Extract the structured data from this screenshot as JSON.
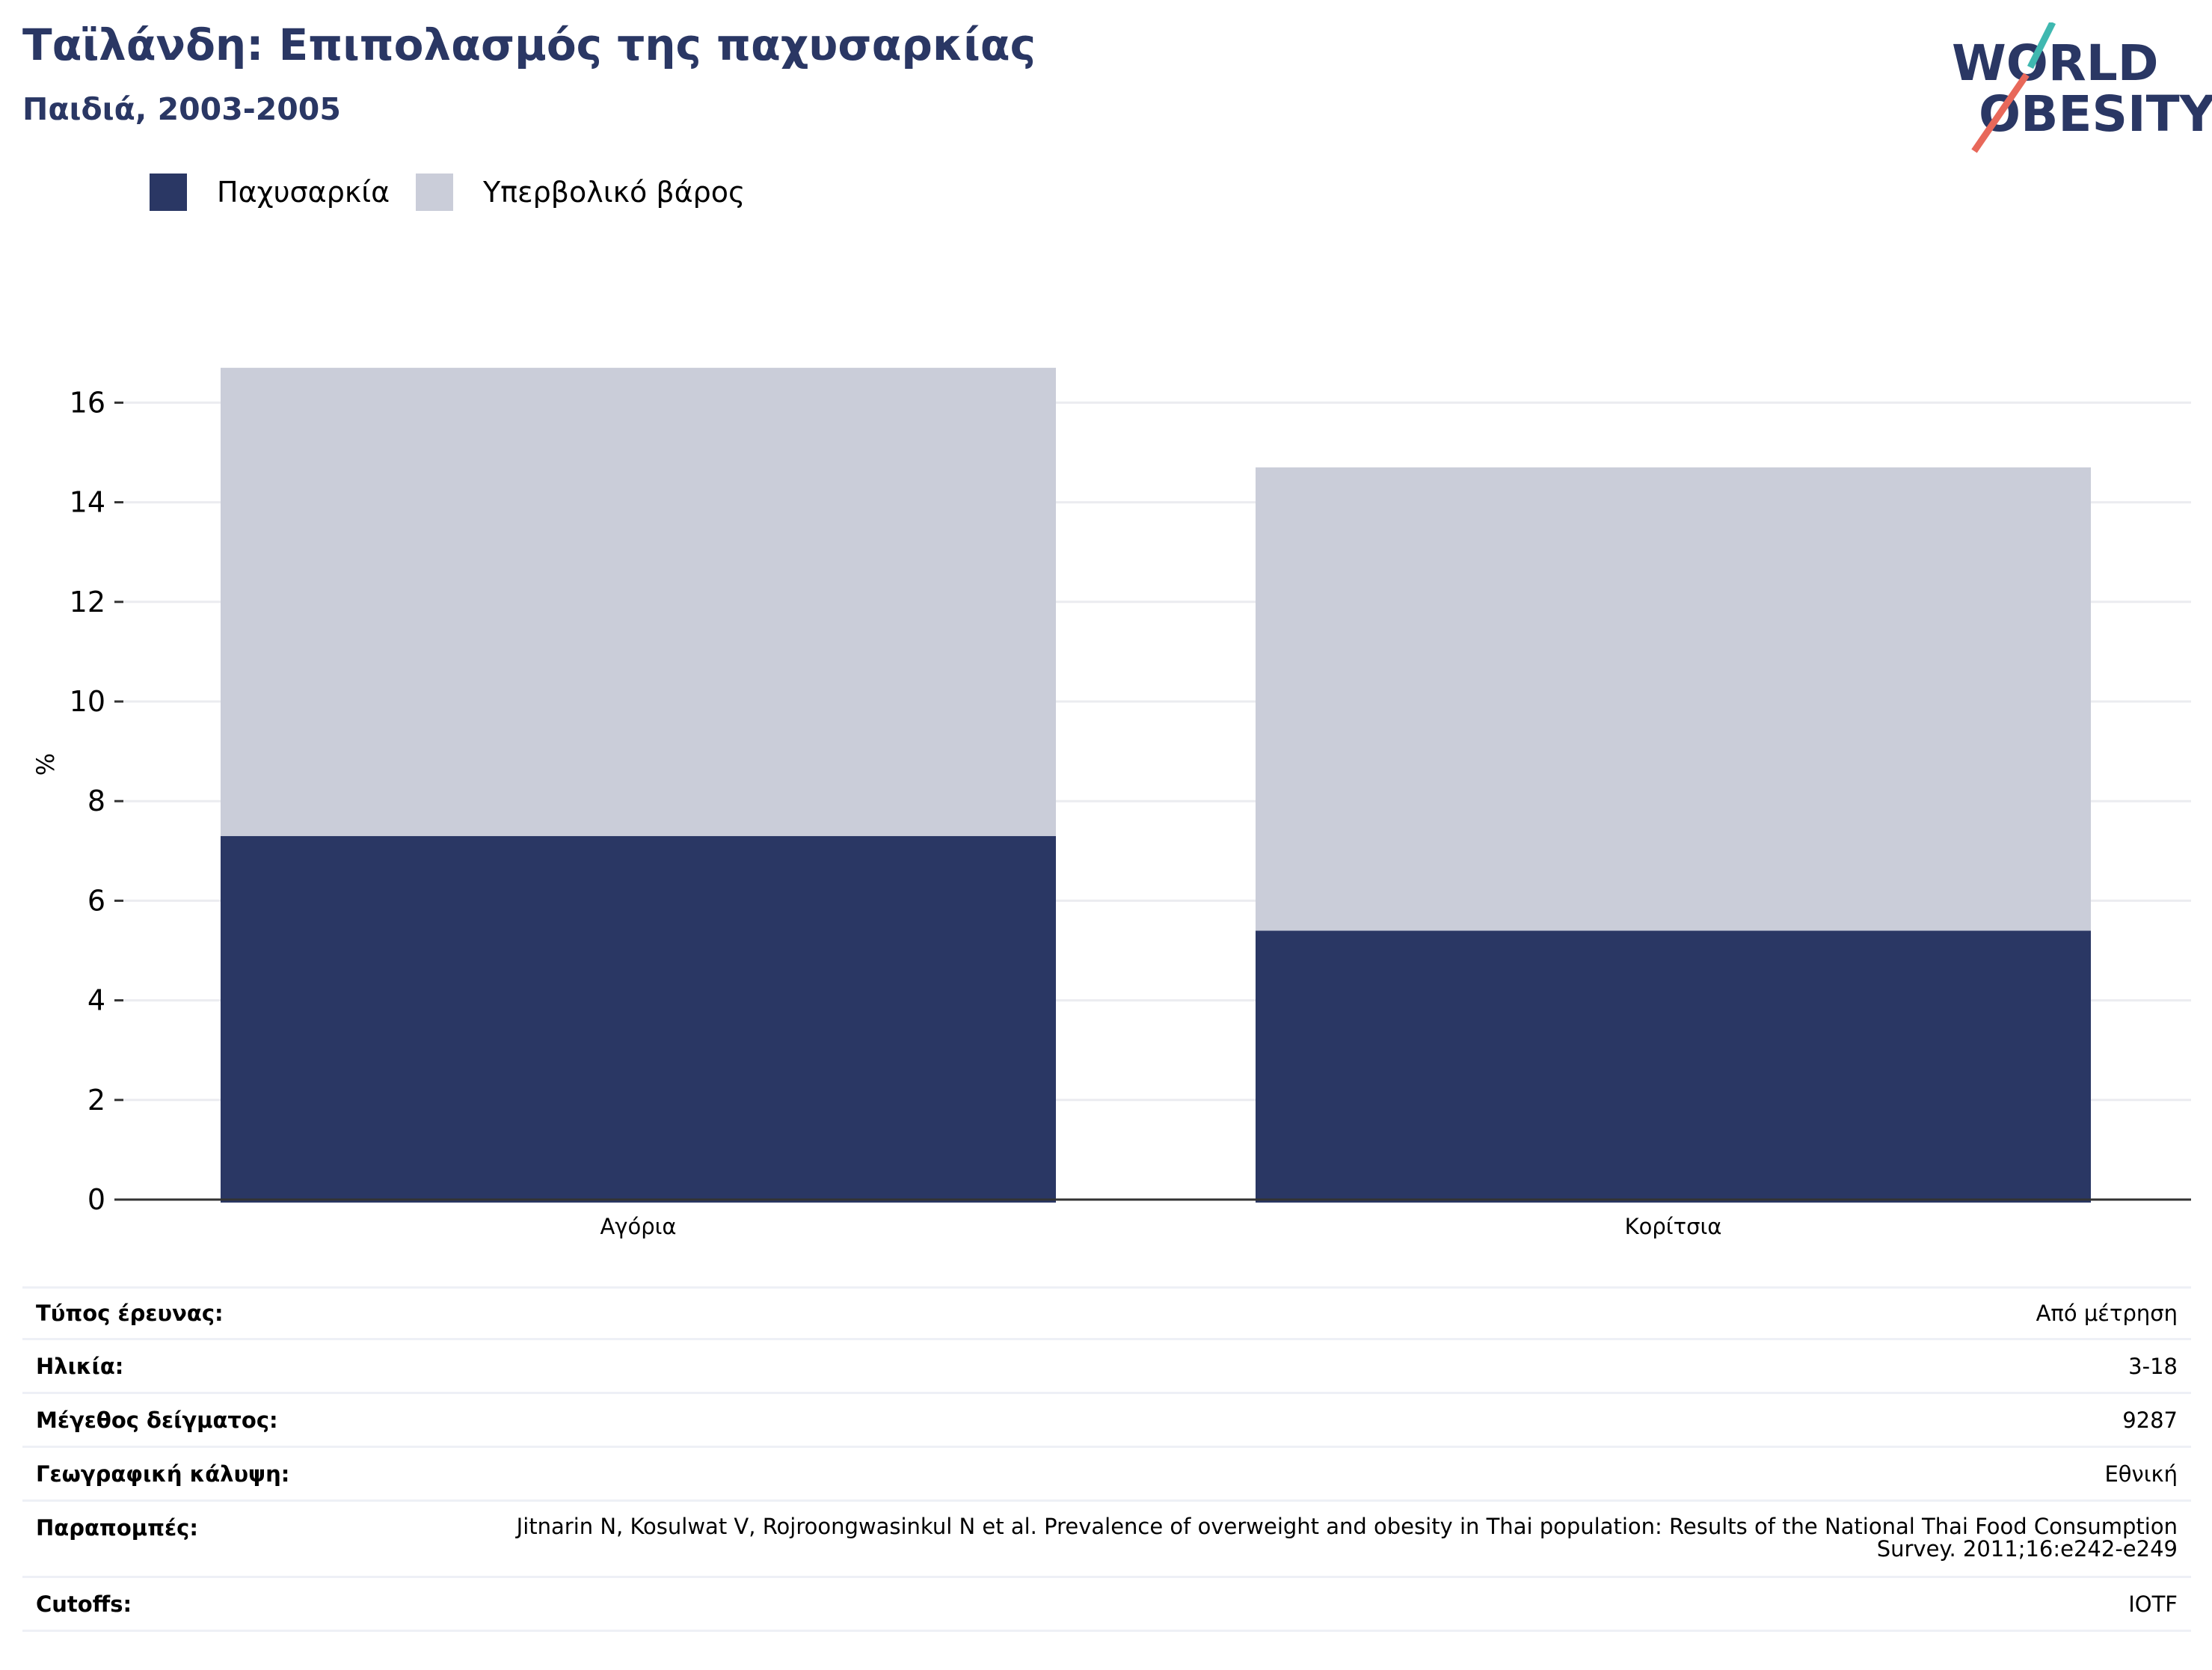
{
  "title": "Ταϊλάνδη: Επιπολασμός της παχυσαρκίας",
  "subtitle": "Παιδιά, 2003-2005",
  "logo": {
    "line1": "WORLD",
    "line2": "OBESITY"
  },
  "colors": {
    "obesity": "#2a3764",
    "overweight": "#cacdd9",
    "title": "#2a3764",
    "logo_teal": "#3fb8b0",
    "logo_coral": "#e8685a"
  },
  "chart_data": {
    "type": "bar",
    "stacked": true,
    "categories": [
      "Αγόρια",
      "Κορίτσια"
    ],
    "series": [
      {
        "name": "Παχυσαρκία",
        "values": [
          7.3,
          5.4
        ],
        "color": "#2a3764"
      },
      {
        "name": "Υπερβολικό βάρος",
        "values": [
          9.4,
          9.3
        ],
        "color": "#cacdd9"
      }
    ],
    "ylabel": "%",
    "ylim": [
      0,
      18
    ],
    "yticks": [
      0,
      2,
      4,
      6,
      8,
      10,
      12,
      14,
      16
    ],
    "grid": true,
    "legend": "top-left"
  },
  "details": [
    {
      "label": "Τύπος έρευνας:",
      "value": "Από μέτρηση"
    },
    {
      "label": "Ηλικία:",
      "value": "3-18"
    },
    {
      "label": "Μέγεθος δείγματος:",
      "value": "9287"
    },
    {
      "label": "Γεωγραφική κάλυψη:",
      "value": "Εθνική"
    },
    {
      "label": "Παραπομπές:",
      "value": "Jitnarin N, Kosulwat V, Rojroongwasinkul N et al. Prevalence of overweight and obesity in Thai population: Results of the National Thai Food Consumption Survey. 2011;16:e242-e249"
    },
    {
      "label": "Cutoffs:",
      "value": "IOTF"
    }
  ]
}
